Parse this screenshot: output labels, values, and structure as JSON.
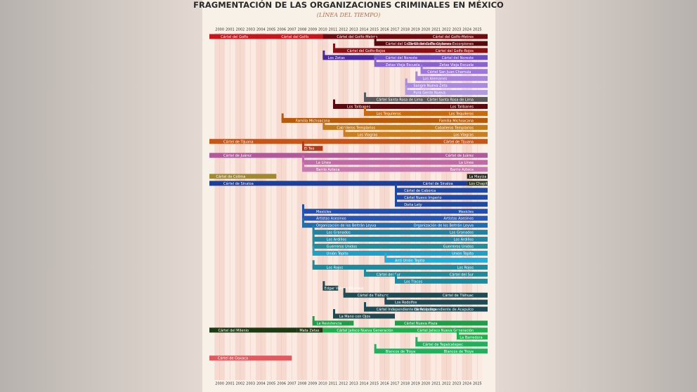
{
  "chart_data": {
    "type": "timeline",
    "title": "FRAGMENTACIÓN DE LAS ORGANIZACIONES CRIMINALES EN MÉXICO",
    "subtitle": "(LÍNEA DEL TIEMPO)",
    "xlim": [
      1999,
      2026
    ],
    "xticks": [
      2000,
      2001,
      2002,
      2003,
      2004,
      2005,
      2006,
      2007,
      2008,
      2009,
      2010,
      2011,
      2012,
      2013,
      2014,
      2015,
      2016,
      2017,
      2018,
      2019,
      2020,
      2021,
      2022,
      2023,
      2024,
      2025
    ],
    "rows": [
      {
        "bars": [
          {
            "name": "Cártel del Golfo",
            "start": 1999,
            "end": 2010,
            "color": "#c8141c"
          },
          {
            "name": "Cártel del Golfo-Metros",
            "start": 2010,
            "end": 2026,
            "color": "#6e0b10"
          }
        ]
      },
      {
        "bars": [
          {
            "name": "Cártel del Golfo-Ciclones-Escorpiones",
            "start": 2015,
            "end": 2026,
            "color": "#5a0a0f"
          }
        ]
      },
      {
        "bars": [
          {
            "name": "Cártel del Golfo-Rojos",
            "start": 2011,
            "end": 2026,
            "color": "#8b1015"
          }
        ]
      },
      {
        "bars": [
          {
            "name": "Los Zetas",
            "start": 2010,
            "end": 2015,
            "color": "#4b2a9c"
          },
          {
            "name": "Cártel del Noreste",
            "start": 2015,
            "end": 2026,
            "color": "#6d4bc4"
          }
        ]
      },
      {
        "bars": [
          {
            "name": "Zetas Vieja Escuela",
            "start": 2015,
            "end": 2026,
            "color": "#8a63d2"
          }
        ]
      },
      {
        "bars": [
          {
            "name": "Cártel San Juan Chamula",
            "start": 2019.5,
            "end": 2026,
            "color": "#9c78de"
          }
        ]
      },
      {
        "bars": [
          {
            "name": "Los Alemanes",
            "start": 2019,
            "end": 2026,
            "color": "#a684e0"
          }
        ]
      },
      {
        "bars": [
          {
            "name": "Sangre Nueva Zeta",
            "start": 2018,
            "end": 2026,
            "color": "#a98ae0"
          }
        ]
      },
      {
        "bars": [
          {
            "name": "Pura Gente Nueva",
            "start": 2018,
            "end": 2026,
            "color": "#b09ae2"
          }
        ]
      },
      {
        "bars": [
          {
            "name": "Cártel Santa Rosa de Lima",
            "start": 2014,
            "end": 2026,
            "color": "#5a5a5a"
          }
        ]
      },
      {
        "bars": [
          {
            "name": "Los Talibanes",
            "start": 2011,
            "end": 2026,
            "color": "#5a0a0f"
          }
        ]
      },
      {
        "bars": [
          {
            "name": "Los Tequileros",
            "start": 2014,
            "end": 2026,
            "color": "#c76a10"
          }
        ]
      },
      {
        "bars": [
          {
            "name": "Familia Michoacana",
            "start": 2006,
            "end": 2026,
            "color": "#b85a08"
          }
        ]
      },
      {
        "bars": [
          {
            "name": "Caballeros Templarios",
            "start": 2010,
            "end": 2026,
            "color": "#c07a1a"
          }
        ]
      },
      {
        "bars": [
          {
            "name": "Los Viagras",
            "start": 2012,
            "end": 2026,
            "color": "#c97e20"
          }
        ]
      },
      {
        "bars": [
          {
            "name": "Cártel de Tijuana",
            "start": 1999,
            "end": 2026,
            "color": "#c4561a"
          }
        ]
      },
      {
        "bars": [
          {
            "name": "El Teo",
            "start": 2008,
            "end": 2010,
            "color": "#b23a1a"
          }
        ]
      },
      {
        "bars": [
          {
            "name": "Cártel de Juárez",
            "start": 1999,
            "end": 2026,
            "color": "#b05a9c"
          }
        ]
      },
      {
        "bars": [
          {
            "name": "La Línea",
            "start": 2008,
            "end": 2026,
            "color": "#c06aa8"
          }
        ]
      },
      {
        "bars": [
          {
            "name": "Barrio Azteca",
            "start": 2008,
            "end": 2026,
            "color": "#c87ab0"
          }
        ]
      },
      {
        "bars": [
          {
            "name": "Cártel de Colima",
            "start": 1999,
            "end": 2005.5,
            "color": "#a08a30"
          },
          {
            "name": "La Mayiza",
            "start": 2024,
            "end": 2026,
            "color": "#2e2a20"
          }
        ]
      },
      {
        "bars": [
          {
            "name": "Cártel de Sinaloa",
            "start": 1999,
            "end": 2024,
            "color": "#1d3f9a"
          },
          {
            "name": "Los Chapitos",
            "start": 2024,
            "end": 2026,
            "color": "#2a3a20"
          }
        ]
      },
      {
        "bars": [
          {
            "name": "Cártel de Caborca",
            "start": 2017,
            "end": 2026,
            "color": "#1d4aa8"
          }
        ]
      },
      {
        "bars": [
          {
            "name": "Cártel Nuevo Imperio",
            "start": 2017,
            "end": 2026,
            "color": "#1d4aa8"
          }
        ]
      },
      {
        "bars": [
          {
            "name": "Doña Lety",
            "start": 2017,
            "end": 2026,
            "color": "#1d4aa8"
          }
        ]
      },
      {
        "bars": [
          {
            "name": "Mexicles",
            "start": 2008,
            "end": 2026,
            "color": "#1e50b4"
          }
        ]
      },
      {
        "bars": [
          {
            "name": "Artistas Asesinos",
            "start": 2008,
            "end": 2026,
            "color": "#2058bb"
          }
        ]
      },
      {
        "bars": [
          {
            "name": "Organización de los Beltrán Leyva",
            "start": 2008,
            "end": 2026,
            "color": "#1f6fb0"
          }
        ]
      },
      {
        "bars": [
          {
            "name": "Los Granados",
            "start": 2009,
            "end": 2026,
            "color": "#1a86a8"
          }
        ]
      },
      {
        "bars": [
          {
            "name": "Los Ardillos",
            "start": 2009,
            "end": 2026,
            "color": "#1a8aa8"
          }
        ]
      },
      {
        "bars": [
          {
            "name": "Guerreros Unidos",
            "start": 2009,
            "end": 2026,
            "color": "#1a90a0"
          }
        ]
      },
      {
        "bars": [
          {
            "name": "Unión Tepito",
            "start": 2009,
            "end": 2026,
            "color": "#1ea0c8"
          }
        ]
      },
      {
        "bars": [
          {
            "name": "Anti Unión Tepito",
            "start": 2016,
            "end": 2026,
            "color": "#1eb0e0"
          }
        ]
      },
      {
        "bars": [
          {
            "name": "Los Rojos",
            "start": 2009,
            "end": 2026,
            "color": "#1a8ca0"
          }
        ]
      },
      {
        "bars": [
          {
            "name": "Cártel del Sur",
            "start": 2014,
            "end": 2026,
            "color": "#1a8ca0"
          }
        ]
      },
      {
        "bars": [
          {
            "name": "Los Tlacos",
            "start": 2017,
            "end": 2026,
            "color": "#1a8ca0"
          }
        ]
      },
      {
        "bars": [
          {
            "name": "Edgar Valdez Villarreal",
            "start": 2010,
            "end": 2011.5,
            "color": "#1e4a50"
          }
        ]
      },
      {
        "bars": [
          {
            "name": "Cártel de Tláhuac",
            "start": 2012,
            "end": 2026,
            "color": "#1c4c55"
          }
        ]
      },
      {
        "bars": [
          {
            "name": "Los Rodolfos",
            "start": 2016,
            "end": 2026,
            "color": "#1c4c55"
          }
        ]
      },
      {
        "bars": [
          {
            "name": "Cártel Independiente de Acapulco",
            "start": 2014,
            "end": 2026,
            "color": "#1c4c55"
          }
        ]
      },
      {
        "bars": [
          {
            "name": "La Mano con Ojos",
            "start": 2011,
            "end": 2017,
            "color": "#1e4a50"
          }
        ]
      },
      {
        "bars": [
          {
            "name": "La Resistencia",
            "start": 2009,
            "end": 2013,
            "color": "#1ea04a"
          },
          {
            "name": "Cártel Nueva Plaza",
            "start": 2017,
            "end": 2026,
            "color": "#1ea04a"
          }
        ]
      },
      {
        "bars": [
          {
            "name": "Cártel del Milenio",
            "start": 1999,
            "end": 2007.5,
            "color": "#1e3a14"
          },
          {
            "name": "Mata Zetas",
            "start": 2007.5,
            "end": 2010,
            "color": "#1e3a14"
          },
          {
            "name": "Cártel Jalisco Nueva Generación",
            "start": 2010,
            "end": 2026,
            "color": "#20b050"
          }
        ]
      },
      {
        "bars": [
          {
            "name": "La Barredora",
            "start": 2023,
            "end": 2026,
            "color": "#20b050"
          }
        ]
      },
      {
        "bars": [
          {
            "name": "Cártel de Tepalcatepec",
            "start": 2019,
            "end": 2026,
            "color": "#20b060"
          }
        ]
      },
      {
        "bars": [
          {
            "name": "Blancos de Troya",
            "start": 2015,
            "end": 2026,
            "color": "#20b060"
          }
        ]
      },
      {
        "bars": [
          {
            "name": "Cártel de Oaxaca",
            "start": 1999,
            "end": 2007,
            "color": "#e05a60"
          }
        ]
      }
    ]
  }
}
